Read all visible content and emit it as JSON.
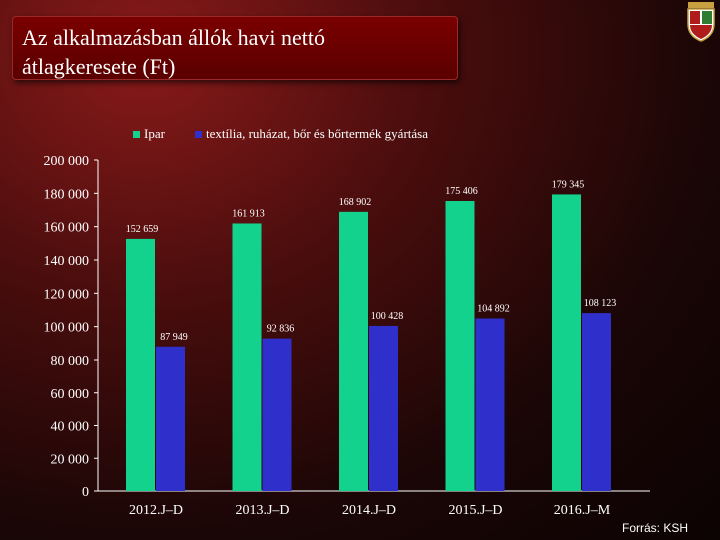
{
  "slide": {
    "title_line1": "Az alkalmazásban állók havi nettó",
    "title_line2": "átlagkeresete (Ft)",
    "source": "Forrás: KSH"
  },
  "colors": {
    "ipar": "#12d28e",
    "textil": "#2f2fcc",
    "axis": "#ffffff",
    "title_bg": "#6a0000"
  },
  "chart_data": {
    "type": "bar",
    "categories": [
      "2012.J–D",
      "2013.J–D",
      "2014.J–D",
      "2015.J–D",
      "2016.J–M"
    ],
    "series": [
      {
        "name": "Ipar",
        "values": [
          152659,
          161913,
          168902,
          175406,
          179345
        ],
        "labels": [
          "152 659",
          "161 913",
          "168 902",
          "175 406",
          "179 345"
        ]
      },
      {
        "name": "textília, ruházat, bőr és bőrtermék gyártása",
        "values": [
          87949,
          92836,
          100428,
          104892,
          108123
        ],
        "labels": [
          "87 949",
          "92 836",
          "100 428",
          "104 892",
          "108 123"
        ]
      }
    ],
    "ylim": [
      0,
      200000
    ],
    "yticks": [
      0,
      20000,
      40000,
      60000,
      80000,
      100000,
      120000,
      140000,
      160000,
      180000,
      200000
    ],
    "ytick_labels": [
      "0",
      "20 000",
      "40 000",
      "60 000",
      "80 000",
      "100 000",
      "120 000",
      "140 000",
      "160 000",
      "180 000",
      "200 000"
    ],
    "y_break": [
      0,
      80000
    ],
    "legend_position": "top",
    "grid": false
  }
}
